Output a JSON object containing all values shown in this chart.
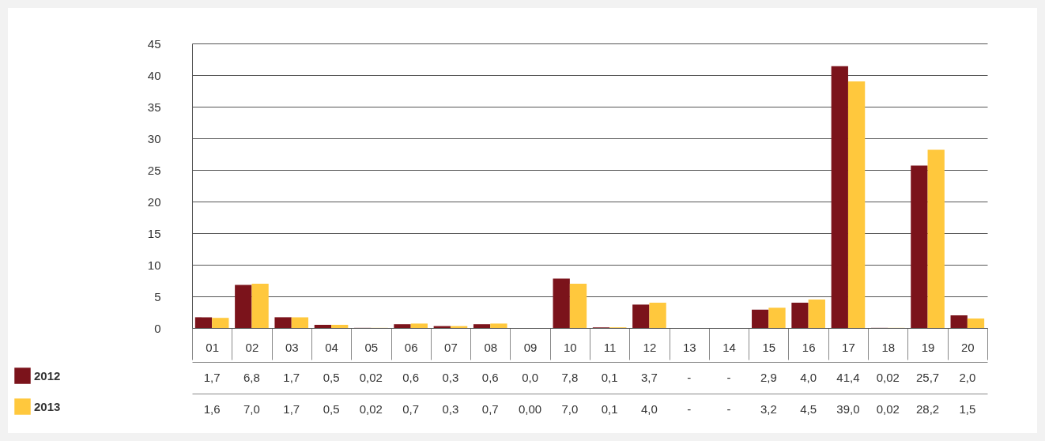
{
  "chart_data": {
    "type": "bar",
    "categories": [
      "01",
      "02",
      "03",
      "04",
      "05",
      "06",
      "07",
      "08",
      "09",
      "10",
      "11",
      "12",
      "13",
      "14",
      "15",
      "16",
      "17",
      "18",
      "19",
      "20"
    ],
    "series": [
      {
        "name": "2012",
        "color": "#7b131b",
        "values": [
          1.7,
          6.8,
          1.7,
          0.5,
          0.02,
          0.6,
          0.3,
          0.6,
          0.0,
          7.8,
          0.1,
          3.7,
          null,
          null,
          2.9,
          4.0,
          41.4,
          0.02,
          25.7,
          2.0
        ],
        "value_labels": [
          "1,7",
          "6,8",
          "1,7",
          "0,5",
          "0,02",
          "0,6",
          "0,3",
          "0,6",
          "0,0",
          "7,8",
          "0,1",
          "3,7",
          "-",
          "-",
          "2,9",
          "4,0",
          "41,4",
          "0,02",
          "25,7",
          "2,0"
        ]
      },
      {
        "name": "2013",
        "color": "#ffc83d",
        "values": [
          1.6,
          7.0,
          1.7,
          0.5,
          0.02,
          0.7,
          0.3,
          0.7,
          0.0,
          7.0,
          0.1,
          4.0,
          null,
          null,
          3.2,
          4.5,
          39.0,
          0.02,
          28.2,
          1.5
        ],
        "value_labels": [
          "1,6",
          "7,0",
          "1,7",
          "0,5",
          "0,02",
          "0,7",
          "0,3",
          "0,7",
          "0,00",
          "7,0",
          "0,1",
          "4,0",
          "-",
          "-",
          "3,2",
          "4,5",
          "39,0",
          "0,02",
          "28,2",
          "1,5"
        ]
      }
    ],
    "ylim": [
      0,
      45
    ],
    "yticks": [
      0,
      5,
      10,
      15,
      20,
      25,
      30,
      35,
      40,
      45
    ],
    "grid": "y",
    "legend": "bottom left"
  }
}
